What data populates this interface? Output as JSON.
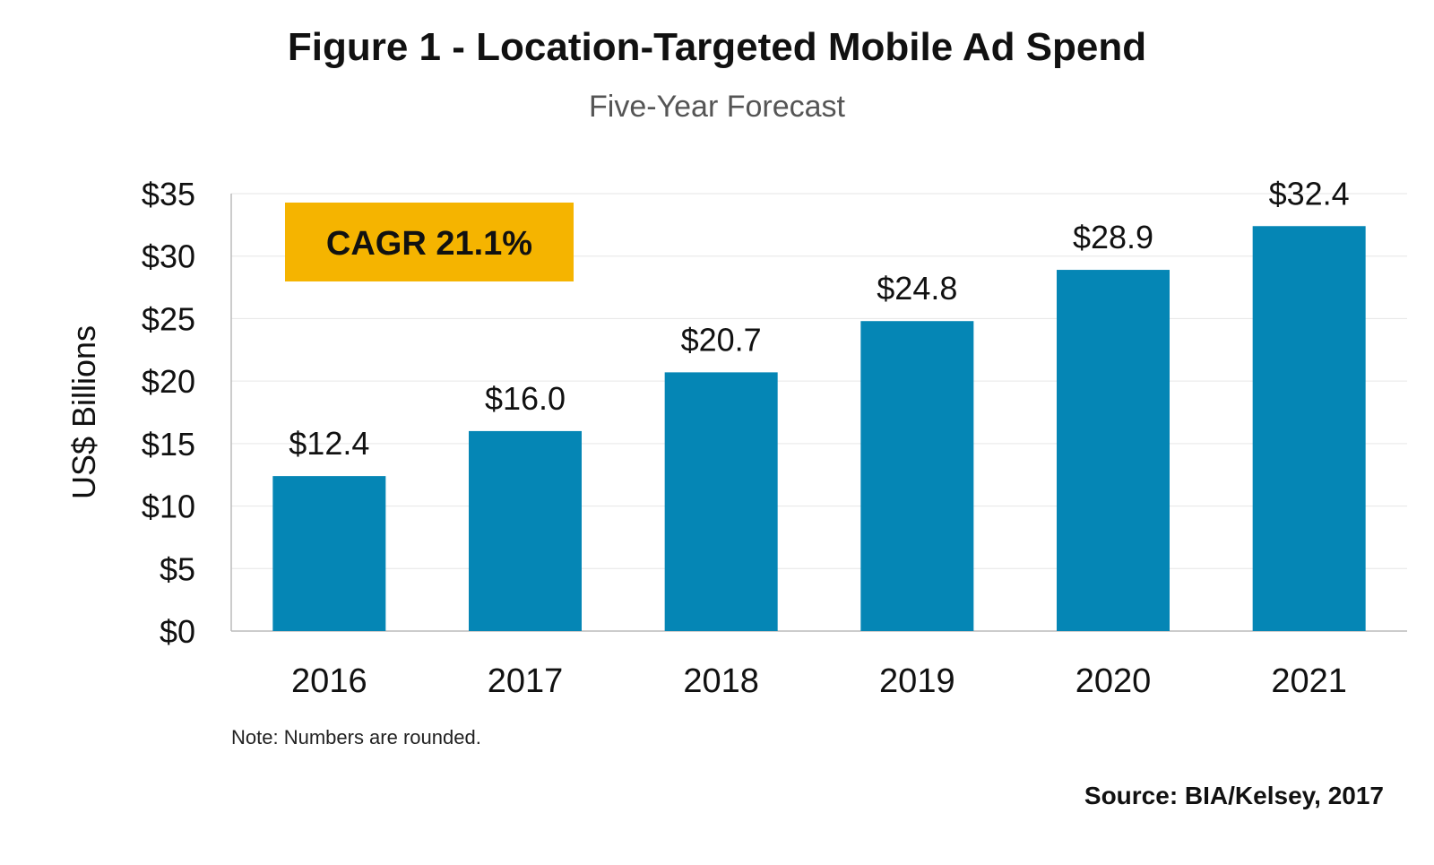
{
  "header": {
    "title": "Figure 1 - Location-Targeted Mobile Ad Spend",
    "subtitle": "Five-Year Forecast"
  },
  "badge": {
    "text": "CAGR 21.1%",
    "color": "#F5B400"
  },
  "footer": {
    "note": "Note: Numbers are rounded.",
    "source": "Source: BIA/Kelsey, 2017"
  },
  "colors": {
    "bar": "#0586B5",
    "grid": "#E6E6E6",
    "axis": "#BBBBBB"
  },
  "chart_data": {
    "type": "bar",
    "title": "Figure 1 - Location-Targeted Mobile Ad Spend",
    "subtitle": "Five-Year Forecast",
    "categories": [
      "2016",
      "2017",
      "2018",
      "2019",
      "2020",
      "2021"
    ],
    "values": [
      12.4,
      16.0,
      20.7,
      24.8,
      28.9,
      32.4
    ],
    "value_labels": [
      "$12.4",
      "$16.0",
      "$20.7",
      "$24.8",
      "$28.9",
      "$32.4"
    ],
    "ylabel": "US$ Billions",
    "xlabel": "",
    "ylim": [
      0,
      35
    ],
    "yticks": [
      0,
      5,
      10,
      15,
      20,
      25,
      30,
      35
    ],
    "ytick_labels": [
      "$0",
      "$5",
      "$10",
      "$15",
      "$20",
      "$25",
      "$30",
      "$35"
    ],
    "grid": true,
    "legend": "none"
  }
}
